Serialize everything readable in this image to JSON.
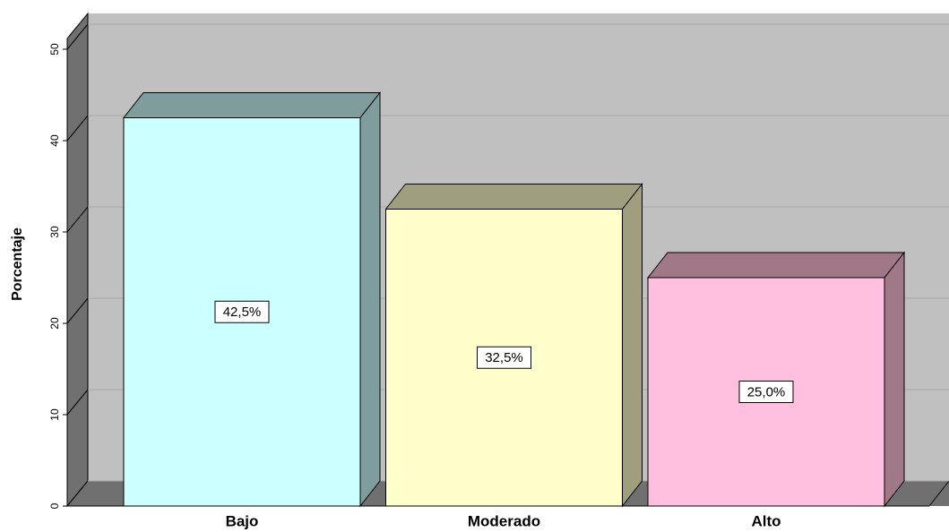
{
  "chart_data": {
    "type": "bar3d",
    "y_label": "Porcentaje",
    "categories": [
      "Bajo",
      "Moderado",
      "Alto"
    ],
    "values": [
      42.5,
      32.5,
      25.0
    ],
    "value_labels": [
      "42,5%",
      "32,5%",
      "25,0%"
    ],
    "colors": [
      "#ccffff",
      "#ffffcc",
      "#ffc0e0"
    ],
    "side_colors": [
      "#7f9d9d",
      "#9f9f7f",
      "#a07888"
    ],
    "ylim": [
      0,
      50
    ],
    "yticks": [
      0,
      10,
      20,
      30,
      40,
      50
    ],
    "grid": true
  }
}
